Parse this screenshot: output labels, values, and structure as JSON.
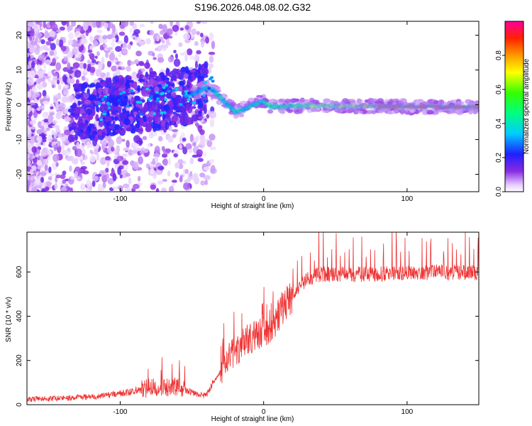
{
  "figure_title": "S196.2026.048.08.02.G32",
  "chart_data": [
    {
      "type": "heatmap",
      "name": "spectrogram",
      "title": "S196.2026.048.08.02.G32",
      "xlabel": "Height of straight line (km)",
      "ylabel": "Frequency (Hz)",
      "xlim": [
        -165,
        150
      ],
      "ylim": [
        -25,
        24
      ],
      "xticks": [
        -100,
        0,
        100
      ],
      "yticks": [
        -20,
        -10,
        0,
        10,
        20
      ],
      "x_tick_labels": [
        "-100",
        "0",
        "100"
      ],
      "y_tick_labels": [
        "-20",
        "-10",
        "0",
        "10",
        "20"
      ],
      "ridge": {
        "x": [
          -165,
          -120,
          -100,
          -80,
          -60,
          -50,
          -45,
          -40,
          -35,
          -30,
          -25,
          -20,
          -15,
          -10,
          -5,
          0,
          5,
          10,
          20,
          40,
          60,
          80,
          100,
          120,
          150
        ],
        "freq": [
          -3,
          -2,
          0,
          1,
          2,
          3,
          4,
          5,
          4,
          2,
          0,
          -2,
          -1.5,
          -0.5,
          0.5,
          1,
          -0.5,
          -0.5,
          -0.3,
          -0.3,
          -0.4,
          -0.5,
          -0.6,
          -0.6,
          -0.6
        ]
      },
      "colorbar": {
        "label": "Normalized spectral amplitude",
        "range": [
          0,
          1
        ],
        "ticks": [
          0.0,
          0.2,
          0.4,
          0.6,
          0.8
        ],
        "tick_labels": [
          "0.0",
          "0.2",
          "0.4",
          "0.6",
          "0.8"
        ]
      }
    },
    {
      "type": "line",
      "name": "snr",
      "xlabel": "Height of straight line (km)",
      "ylabel": "SNR (10 * v/v)",
      "xlim": [
        -165,
        150
      ],
      "ylim": [
        0,
        780
      ],
      "xticks": [
        -100,
        0,
        100
      ],
      "yticks": [
        0,
        200,
        400,
        600
      ],
      "x_tick_labels": [
        "-100",
        "0",
        "100"
      ],
      "y_tick_labels": [
        "0",
        "200",
        "400",
        "600"
      ],
      "color": "#ee3333",
      "trend": {
        "x": [
          -165,
          -140,
          -120,
          -100,
          -80,
          -60,
          -50,
          -40,
          -35,
          -30,
          -25,
          -20,
          -15,
          -10,
          -5,
          0,
          5,
          10,
          15,
          20,
          25,
          30,
          40,
          50,
          60,
          80,
          100,
          120,
          150
        ],
        "y": [
          25,
          30,
          35,
          50,
          75,
          80,
          55,
          40,
          100,
          150,
          210,
          240,
          270,
          300,
          310,
          320,
          360,
          400,
          460,
          500,
          530,
          570,
          590,
          590,
          590,
          590,
          595,
          600,
          595
        ]
      }
    }
  ]
}
